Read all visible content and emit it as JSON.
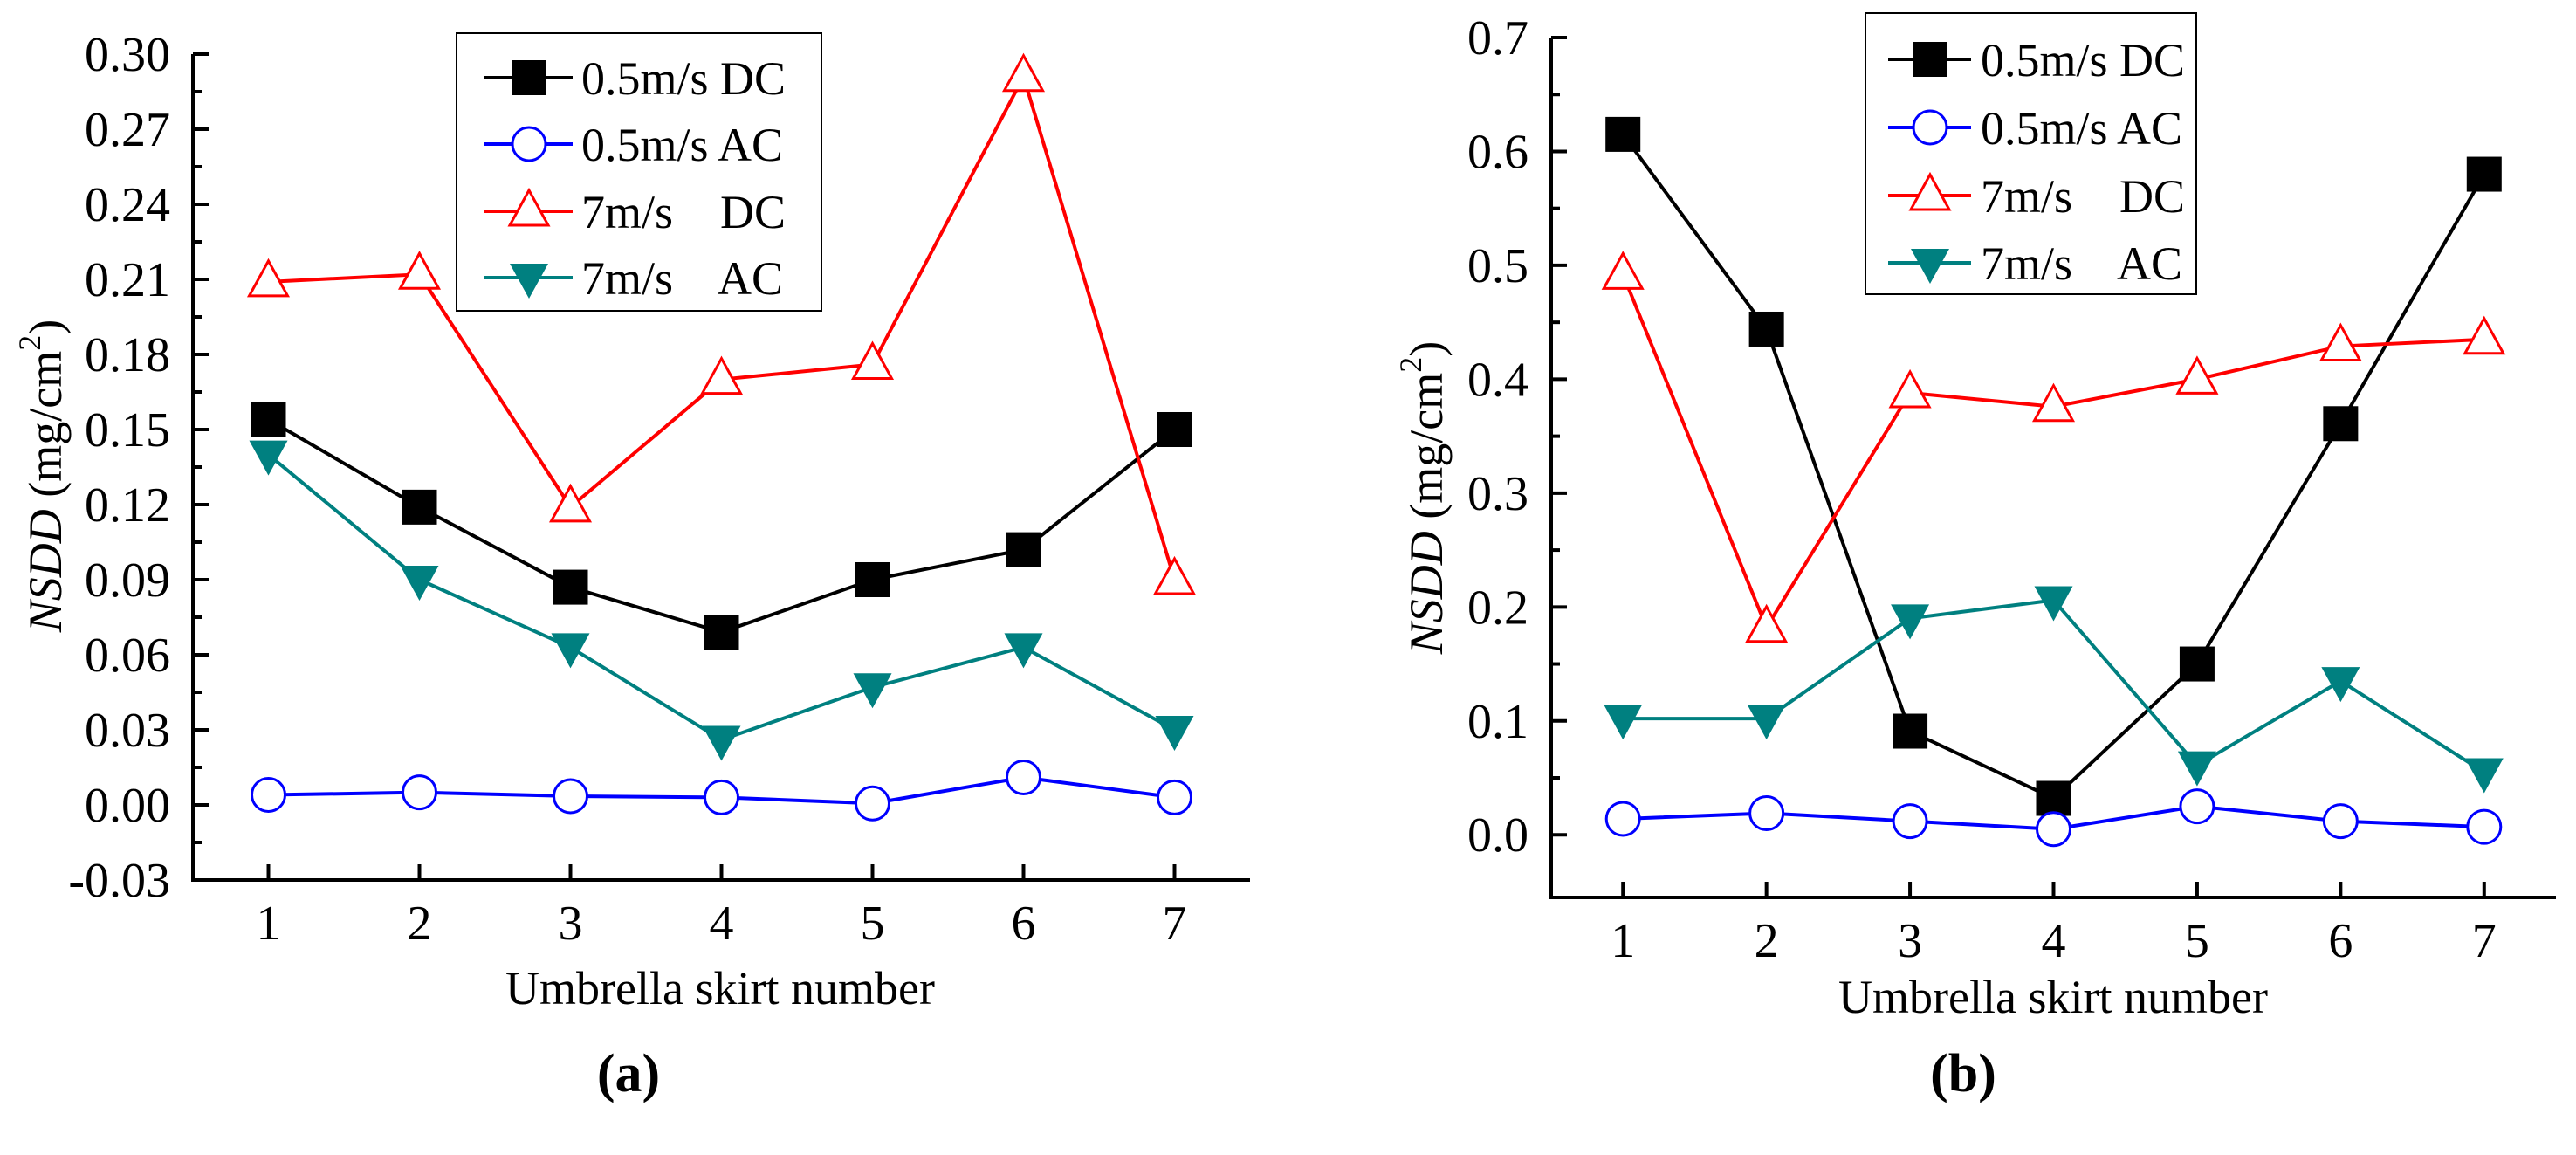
{
  "colors": {
    "dc05": "#000000",
    "ac05": "#0000ff",
    "dc7": "#ff0000",
    "ac7": "#008080"
  },
  "chart_data": [
    {
      "type": "line",
      "panel_label": "(a)",
      "xlabel": "Umbrella skirt number",
      "ylabel_italic": "NSDD",
      "ylabel_unit": " (mg/cm",
      "ylabel_sup": "2",
      "ylabel_close": ")",
      "x": [
        1,
        2,
        3,
        4,
        5,
        6,
        7
      ],
      "xticks": [
        "1",
        "2",
        "3",
        "4",
        "5",
        "6",
        "7"
      ],
      "xlim": [
        0.5,
        7.5
      ],
      "ylim": [
        -0.03,
        0.3
      ],
      "yticks": [
        "-0.03",
        "0.00",
        "0.03",
        "0.06",
        "0.09",
        "0.12",
        "0.15",
        "0.18",
        "0.21",
        "0.24",
        "0.27",
        "0.30"
      ],
      "ytick_values": [
        -0.03,
        0.0,
        0.03,
        0.06,
        0.09,
        0.12,
        0.15,
        0.18,
        0.21,
        0.24,
        0.27,
        0.3
      ],
      "legend_position": "top-center",
      "series": [
        {
          "name": "0.5m/s DC",
          "marker": "square",
          "color_key": "dc05",
          "values": [
            0.154,
            0.119,
            0.087,
            0.069,
            0.09,
            0.102,
            0.15
          ]
        },
        {
          "name": "0.5m/s AC",
          "marker": "circle",
          "color_key": "ac05",
          "values": [
            0.004,
            0.005,
            0.0035,
            0.003,
            0.0006,
            0.011,
            0.003
          ]
        },
        {
          "name": "7m/s    DC",
          "marker": "triangle-up",
          "color_key": "dc7",
          "values": [
            0.209,
            0.212,
            0.119,
            0.17,
            0.176,
            0.291,
            0.09
          ]
        },
        {
          "name": "7m/s    AC",
          "marker": "triangle-down",
          "color_key": "ac7",
          "values": [
            0.14,
            0.09,
            0.063,
            0.026,
            0.047,
            0.063,
            0.03
          ]
        }
      ]
    },
    {
      "type": "line",
      "panel_label": "(b)",
      "xlabel": "Umbrella skirt number",
      "ylabel_italic": "NSDD",
      "ylabel_unit": " (mg/cm",
      "ylabel_sup": "2",
      "ylabel_close": ")",
      "x": [
        1,
        2,
        3,
        4,
        5,
        6,
        7
      ],
      "xticks": [
        "1",
        "2",
        "3",
        "4",
        "5",
        "6",
        "7"
      ],
      "xlim": [
        0.5,
        7.5
      ],
      "ylim": [
        -0.055,
        0.7
      ],
      "yticks": [
        "0.0",
        "0.1",
        "0.2",
        "0.3",
        "0.4",
        "0.5",
        "0.6",
        "0.7"
      ],
      "ytick_values": [
        0.0,
        0.1,
        0.2,
        0.3,
        0.4,
        0.5,
        0.6,
        0.7
      ],
      "legend_position": "top-center",
      "series": [
        {
          "name": "0.5m/s DC",
          "marker": "square",
          "color_key": "dc05",
          "values": [
            0.615,
            0.444,
            0.091,
            0.032,
            0.15,
            0.361,
            0.58
          ]
        },
        {
          "name": "0.5m/s AC",
          "marker": "circle",
          "color_key": "ac05",
          "values": [
            0.014,
            0.019,
            0.012,
            0.005,
            0.025,
            0.012,
            0.007
          ]
        },
        {
          "name": "7m/s    DC",
          "marker": "triangle-up",
          "color_key": "dc7",
          "values": [
            0.492,
            0.182,
            0.388,
            0.376,
            0.4,
            0.429,
            0.435
          ]
        },
        {
          "name": "7m/s    AC",
          "marker": "triangle-down",
          "color_key": "ac7",
          "values": [
            0.102,
            0.102,
            0.19,
            0.206,
            0.061,
            0.135,
            0.055
          ]
        }
      ]
    }
  ]
}
